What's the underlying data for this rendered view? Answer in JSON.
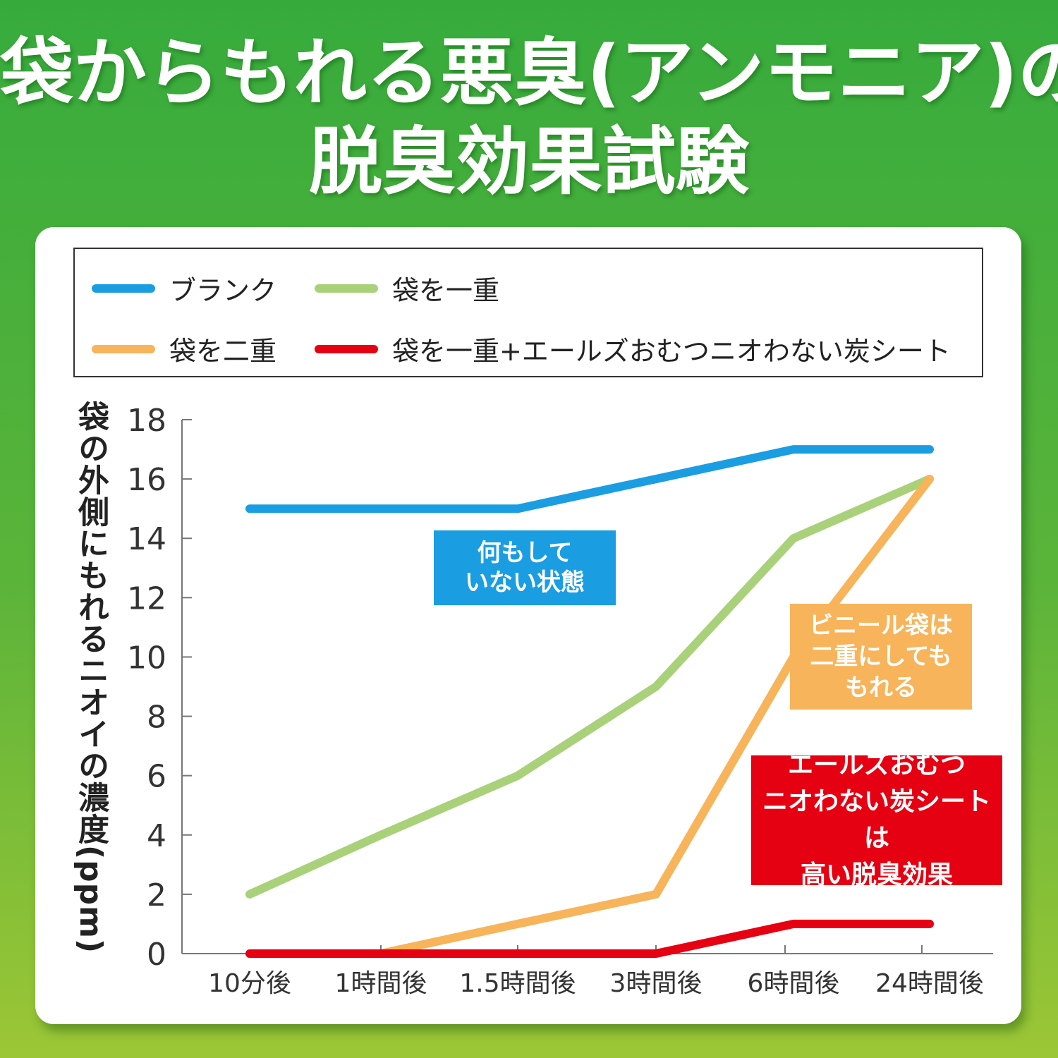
{
  "title": {
    "line1": "袋からもれる悪臭(アンモニア)の",
    "line2": "脱臭効果試験"
  },
  "legend": [
    {
      "label": "ブランク",
      "color": "#1b9de2"
    },
    {
      "label": "袋を一重",
      "color": "#a9d17a"
    },
    {
      "label": "袋を二重",
      "color": "#f7b45a"
    },
    {
      "label": "袋を一重+エールズおむつニオわない炭シート",
      "color": "#e50012"
    }
  ],
  "callouts": {
    "blue": "何もして\nいない状態",
    "orange": "ビニール袋は\n二重にしても\nもれる",
    "red": "エールズおむつ\nニオわない炭シートは\n高い脱臭効果"
  },
  "chart_data": {
    "type": "line",
    "ylabel": "袋の外側にもれるニオイの濃度(ppm)",
    "xlabel": "",
    "categories": [
      "10分後",
      "1時間後",
      "1.5時間後",
      "3時間後",
      "6時間後",
      "24時間後"
    ],
    "ylim": [
      0,
      18
    ],
    "yticks": [
      0,
      2,
      4,
      6,
      8,
      10,
      12,
      14,
      16,
      18
    ],
    "grid": false,
    "legend_position": "top",
    "series": [
      {
        "name": "ブランク",
        "color": "#1b9de2",
        "values": [
          15,
          15,
          15,
          16,
          17,
          17
        ]
      },
      {
        "name": "袋を一重",
        "color": "#a9d17a",
        "values": [
          2,
          4,
          6,
          9,
          14,
          16
        ]
      },
      {
        "name": "袋を二重",
        "color": "#f7b45a",
        "values": [
          0,
          0,
          1,
          2,
          10,
          16
        ]
      },
      {
        "name": "袋を一重+エールズおむつニオわない炭シート",
        "color": "#e50012",
        "values": [
          0,
          0,
          0,
          0,
          1,
          1
        ]
      }
    ]
  }
}
